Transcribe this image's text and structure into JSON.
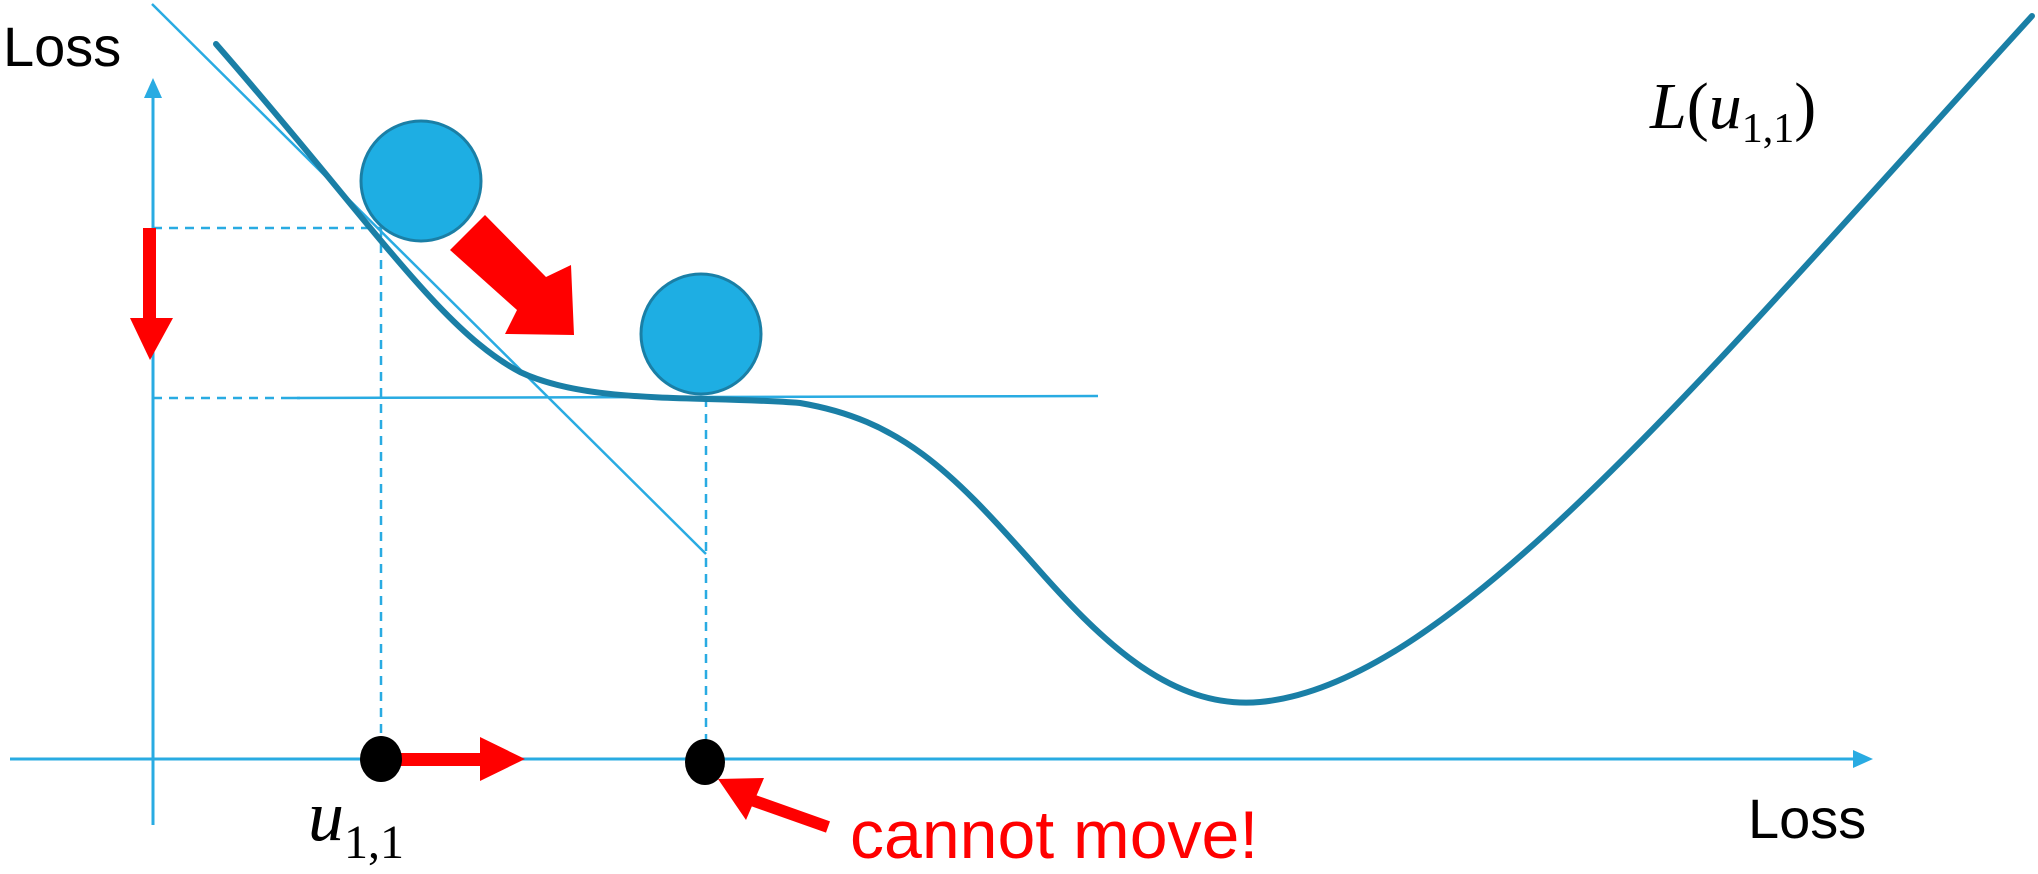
{
  "labels": {
    "y_axis": "Loss",
    "x_axis": "Loss",
    "curve_fn": "L",
    "curve_open": "(",
    "curve_var": "u",
    "curve_sub": "1,1",
    "curve_close": ")",
    "param_var": "u",
    "param_sub": "1,1",
    "stuck_note": "cannot move!"
  },
  "colors": {
    "axis": "#29abe2",
    "curve": "#1a7fa6",
    "ball_fill": "#1eaee3",
    "ball_stroke": "#1a7fa6",
    "arrow": "#ff0000",
    "point": "#000000",
    "guide": "#29abe2"
  },
  "icons": {
    "ball_1": "ball-icon",
    "ball_2": "ball-icon",
    "down_arrow": "arrow-down-icon",
    "right_arrow": "arrow-right-icon",
    "diag_arrow": "arrow-diagonal-icon",
    "pointer_arrow": "arrow-pointer-icon"
  }
}
